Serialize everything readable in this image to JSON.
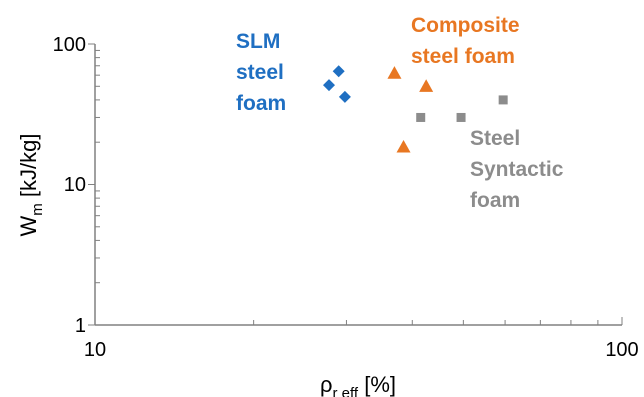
{
  "chart_data": {
    "type": "scatter",
    "title": "",
    "xlabel": {
      "main": "ρ",
      "sub": "r eff",
      "unit": " [%]"
    },
    "ylabel": {
      "main": "W",
      "sub": "m",
      "unit": " [kJ/kg]"
    },
    "xscale": "log",
    "yscale": "log",
    "xlim": [
      10,
      100
    ],
    "ylim": [
      1,
      100
    ],
    "xticks": [
      "10",
      "100"
    ],
    "yticks": [
      "1",
      "10",
      "100"
    ],
    "grid": false,
    "legend": "none",
    "series": [
      {
        "name": "SLM steel foam",
        "label_lines": [
          "SLM",
          "steel",
          "foam"
        ],
        "marker": "diamond",
        "color": "#1F6FC2",
        "points": [
          [
            27.8,
            51
          ],
          [
            29.0,
            64
          ],
          [
            29.8,
            42
          ]
        ]
      },
      {
        "name": "Composite steel foam",
        "label_lines": [
          "Composite",
          "steel foam"
        ],
        "marker": "triangle",
        "color": "#E87722",
        "points": [
          [
            37.0,
            62
          ],
          [
            38.5,
            18.5
          ],
          [
            42.5,
            50
          ]
        ]
      },
      {
        "name": "Steel Syntactic foam",
        "label_lines": [
          "Steel",
          "Syntactic",
          "foam"
        ],
        "marker": "square",
        "color": "#8C8C8C",
        "points": [
          [
            41.5,
            30
          ],
          [
            49.5,
            30
          ],
          [
            59.5,
            40
          ]
        ]
      }
    ]
  }
}
